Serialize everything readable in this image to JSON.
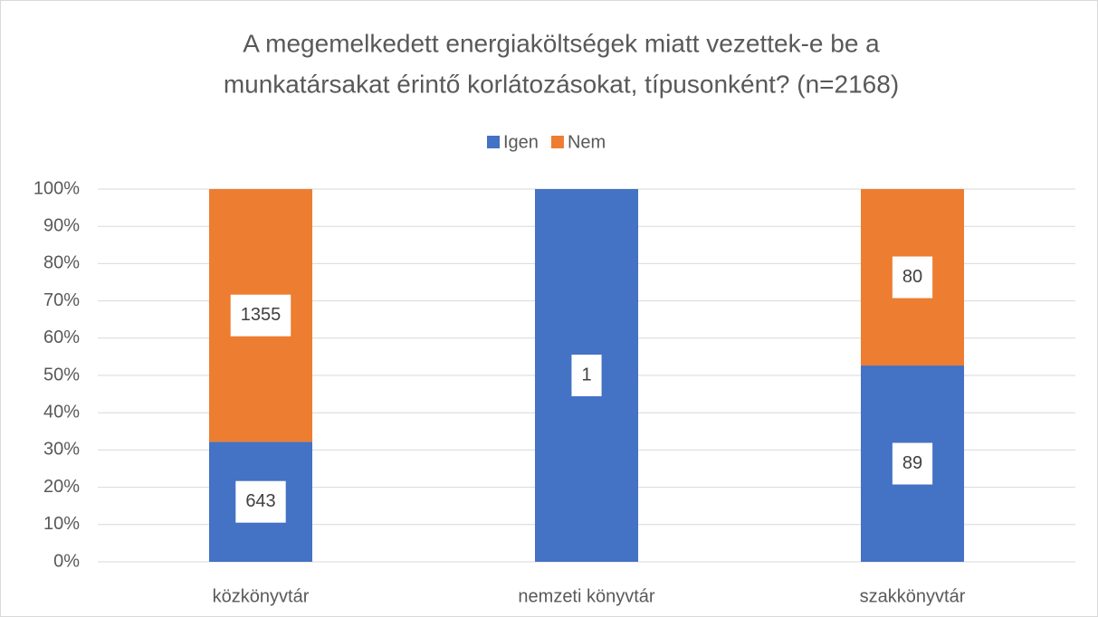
{
  "chart_data": {
    "type": "bar",
    "stacking": "percent",
    "title": [
      "A megemelkedett energiaköltségek miatt vezettek-e be a",
      "munkatársakat érintő korlátozásokat, típusonként? (n=2168)"
    ],
    "categories": [
      "közkönyvtár",
      "nemzeti könyvtár",
      "szakkönyvtár"
    ],
    "series": [
      {
        "name": "Igen",
        "color": "#4472c4",
        "values": [
          643,
          1,
          89
        ]
      },
      {
        "name": "Nem",
        "color": "#ed7d31",
        "values": [
          1355,
          0,
          80
        ]
      }
    ],
    "ylim": [
      0,
      100
    ],
    "yticks": [
      {
        "value": 0,
        "label": "0%"
      },
      {
        "value": 10,
        "label": "10%"
      },
      {
        "value": 20,
        "label": "20%"
      },
      {
        "value": 30,
        "label": "30%"
      },
      {
        "value": 40,
        "label": "40%"
      },
      {
        "value": 50,
        "label": "50%"
      },
      {
        "value": 60,
        "label": "60%"
      },
      {
        "value": 70,
        "label": "70%"
      },
      {
        "value": 80,
        "label": "80%"
      },
      {
        "value": 90,
        "label": "90%"
      },
      {
        "value": 100,
        "label": "100%"
      }
    ],
    "grid": true,
    "legend": "top"
  }
}
